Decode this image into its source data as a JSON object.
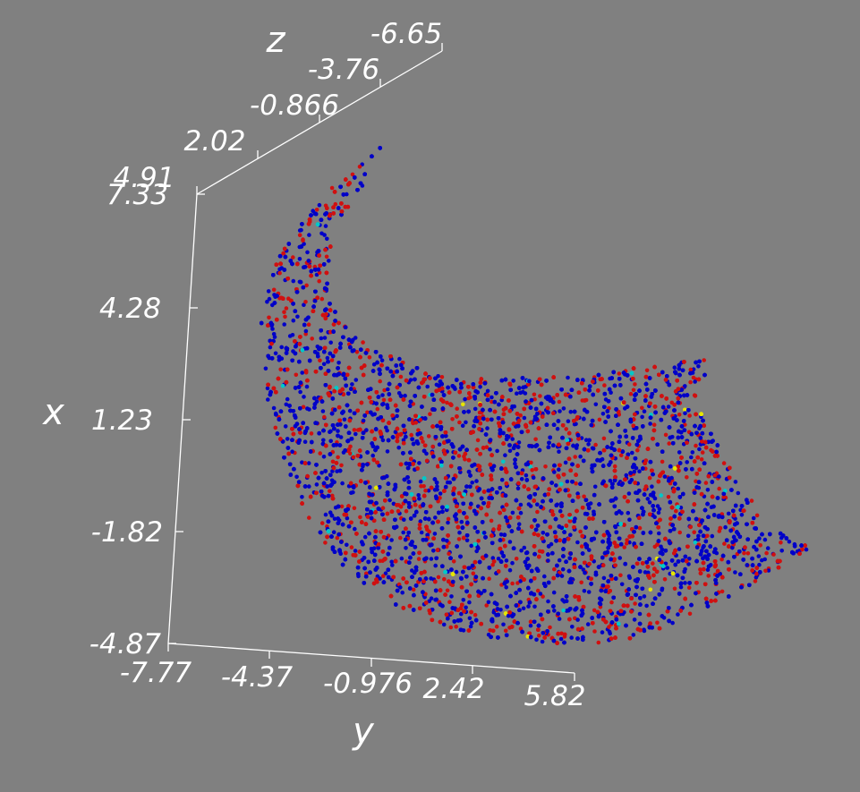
{
  "chart_data": {
    "type": "scatter",
    "projection": "3d",
    "title": "",
    "background_color": "#808080",
    "axis_color": "#ffffff",
    "axes": {
      "x": {
        "label": "x",
        "range": [
          -4.87,
          7.33
        ],
        "ticks": [
          "-4.87",
          "-1.82",
          "1.23",
          "4.28",
          "7.33"
        ]
      },
      "y": {
        "label": "y",
        "range": [
          -7.77,
          5.82
        ],
        "ticks": [
          "-7.77",
          "-4.37",
          "-0.976",
          "2.42",
          "5.82"
        ]
      },
      "z": {
        "label": "z",
        "range": [
          -6.65,
          4.91
        ],
        "ticks": [
          "4.91",
          "2.02",
          "-0.866",
          "-3.76",
          "-6.65"
        ]
      }
    },
    "series": [
      {
        "color": "#0000c8",
        "approx_share": 0.62
      },
      {
        "color": "#d01010",
        "approx_share": 0.36
      },
      {
        "color": "#00c8c8",
        "approx_share": 0.015
      },
      {
        "color": "#e6e600",
        "approx_share": 0.005
      }
    ],
    "grid": false,
    "legend": "none"
  }
}
